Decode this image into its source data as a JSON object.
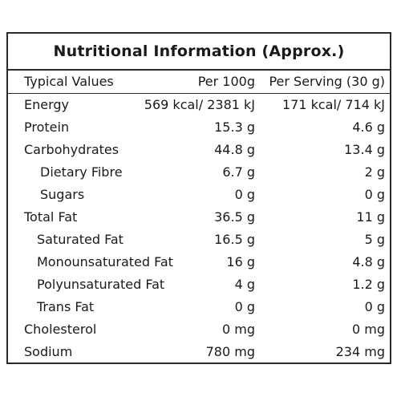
{
  "title": "Nutritional Information (Approx.)",
  "header": {
    "label": "Typical Values",
    "per100": "Per 100g",
    "perServing": "Per Serving (30 g)"
  },
  "rows": [
    {
      "name": "Energy",
      "per100": "569 kcal/ 2381 kJ",
      "perServing": "171 kcal/ 714 kJ"
    },
    {
      "name": "Protein",
      "per100": "15.3 g",
      "perServing": "4.6 g"
    },
    {
      "name": "Carbohydrates",
      "per100": "44.8 g",
      "perServing": "13.4 g"
    },
    {
      "name": "Dietary Fibre",
      "per100": "6.7 g",
      "perServing": "2 g"
    },
    {
      "name": "Sugars",
      "per100": "0 g",
      "perServing": "0 g"
    },
    {
      "name": "Total Fat",
      "per100": "36.5 g",
      "perServing": "11 g"
    },
    {
      "name": "Saturated Fat",
      "per100": "16.5 g",
      "perServing": "5 g"
    },
    {
      "name": "Monounsaturated Fat",
      "per100": "16 g",
      "perServing": "4.8 g"
    },
    {
      "name": "Polyunsaturated Fat",
      "per100": "4 g",
      "perServing": "1.2 g"
    },
    {
      "name": "Trans Fat",
      "per100": "0 g",
      "perServing": "0 g"
    },
    {
      "name": "Cholesterol",
      "per100": "0 mg",
      "perServing": "0 mg"
    },
    {
      "name": "Sodium",
      "per100": "780 mg",
      "perServing": "234 mg"
    }
  ]
}
